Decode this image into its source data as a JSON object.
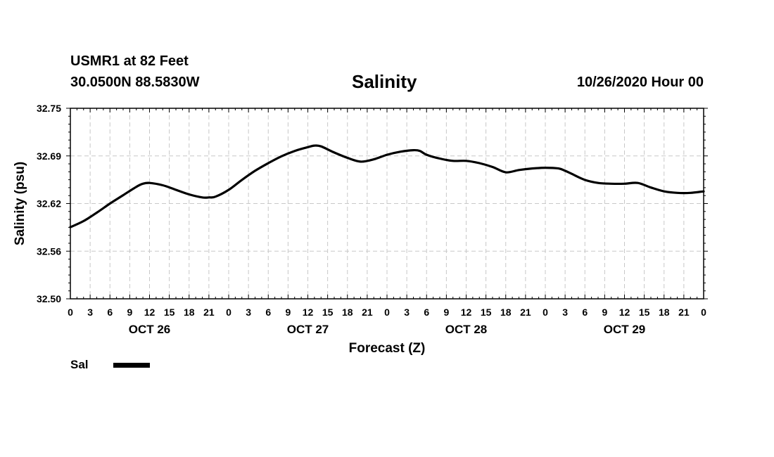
{
  "header": {
    "station": "USMR1 at 82 Feet",
    "coords": "30.0500N 88.5830W",
    "run": "10/26/2020 Hour 00"
  },
  "legend": {
    "label": "Sal",
    "color": "#000000"
  },
  "chart_data": {
    "type": "line",
    "title": "Salinity",
    "xlabel": "Forecast (Z)",
    "ylabel": "Salinity (psu)",
    "ylim": [
      32.5,
      32.75
    ],
    "yticks": [
      "32.75",
      "32.69",
      "32.62",
      "32.56",
      "32.50"
    ],
    "xlim": [
      0,
      96
    ],
    "x_tick_labels": [
      "0",
      "3",
      "6",
      "9",
      "12",
      "15",
      "18",
      "21",
      "0",
      "3",
      "6",
      "9",
      "12",
      "15",
      "18",
      "21",
      "0",
      "3",
      "6",
      "9",
      "12",
      "15",
      "18",
      "21",
      "0",
      "3",
      "6",
      "9",
      "12",
      "15",
      "18",
      "21",
      "0"
    ],
    "day_labels": [
      "OCT 26",
      "OCT 27",
      "OCT 28",
      "OCT 29"
    ],
    "grid": true,
    "series": [
      {
        "name": "Sal",
        "color": "#000000",
        "x": [
          0,
          2,
          4,
          6,
          8,
          10,
          11,
          12,
          14,
          16,
          18,
          20,
          21,
          22,
          24,
          26,
          28,
          30,
          32,
          34,
          36,
          37,
          38,
          40,
          42,
          44,
          46,
          48,
          50,
          52,
          53,
          54,
          56,
          58,
          60,
          62,
          64,
          66,
          68,
          70,
          72,
          74,
          75,
          76,
          78,
          80,
          82,
          84,
          86,
          88,
          90,
          92,
          94,
          96
        ],
        "values": [
          32.594,
          32.602,
          32.613,
          32.625,
          32.636,
          32.647,
          32.651,
          32.652,
          32.649,
          32.643,
          32.637,
          32.633,
          32.633,
          32.634,
          32.643,
          32.656,
          32.668,
          32.678,
          32.687,
          32.694,
          32.699,
          32.701,
          32.7,
          32.692,
          32.685,
          32.68,
          32.683,
          32.689,
          32.693,
          32.695,
          32.694,
          32.689,
          32.684,
          32.681,
          32.681,
          32.678,
          32.673,
          32.666,
          32.669,
          32.671,
          32.672,
          32.671,
          32.668,
          32.664,
          32.656,
          32.652,
          32.651,
          32.651,
          32.652,
          32.646,
          32.641,
          32.639,
          32.639,
          32.641
        ]
      }
    ]
  }
}
